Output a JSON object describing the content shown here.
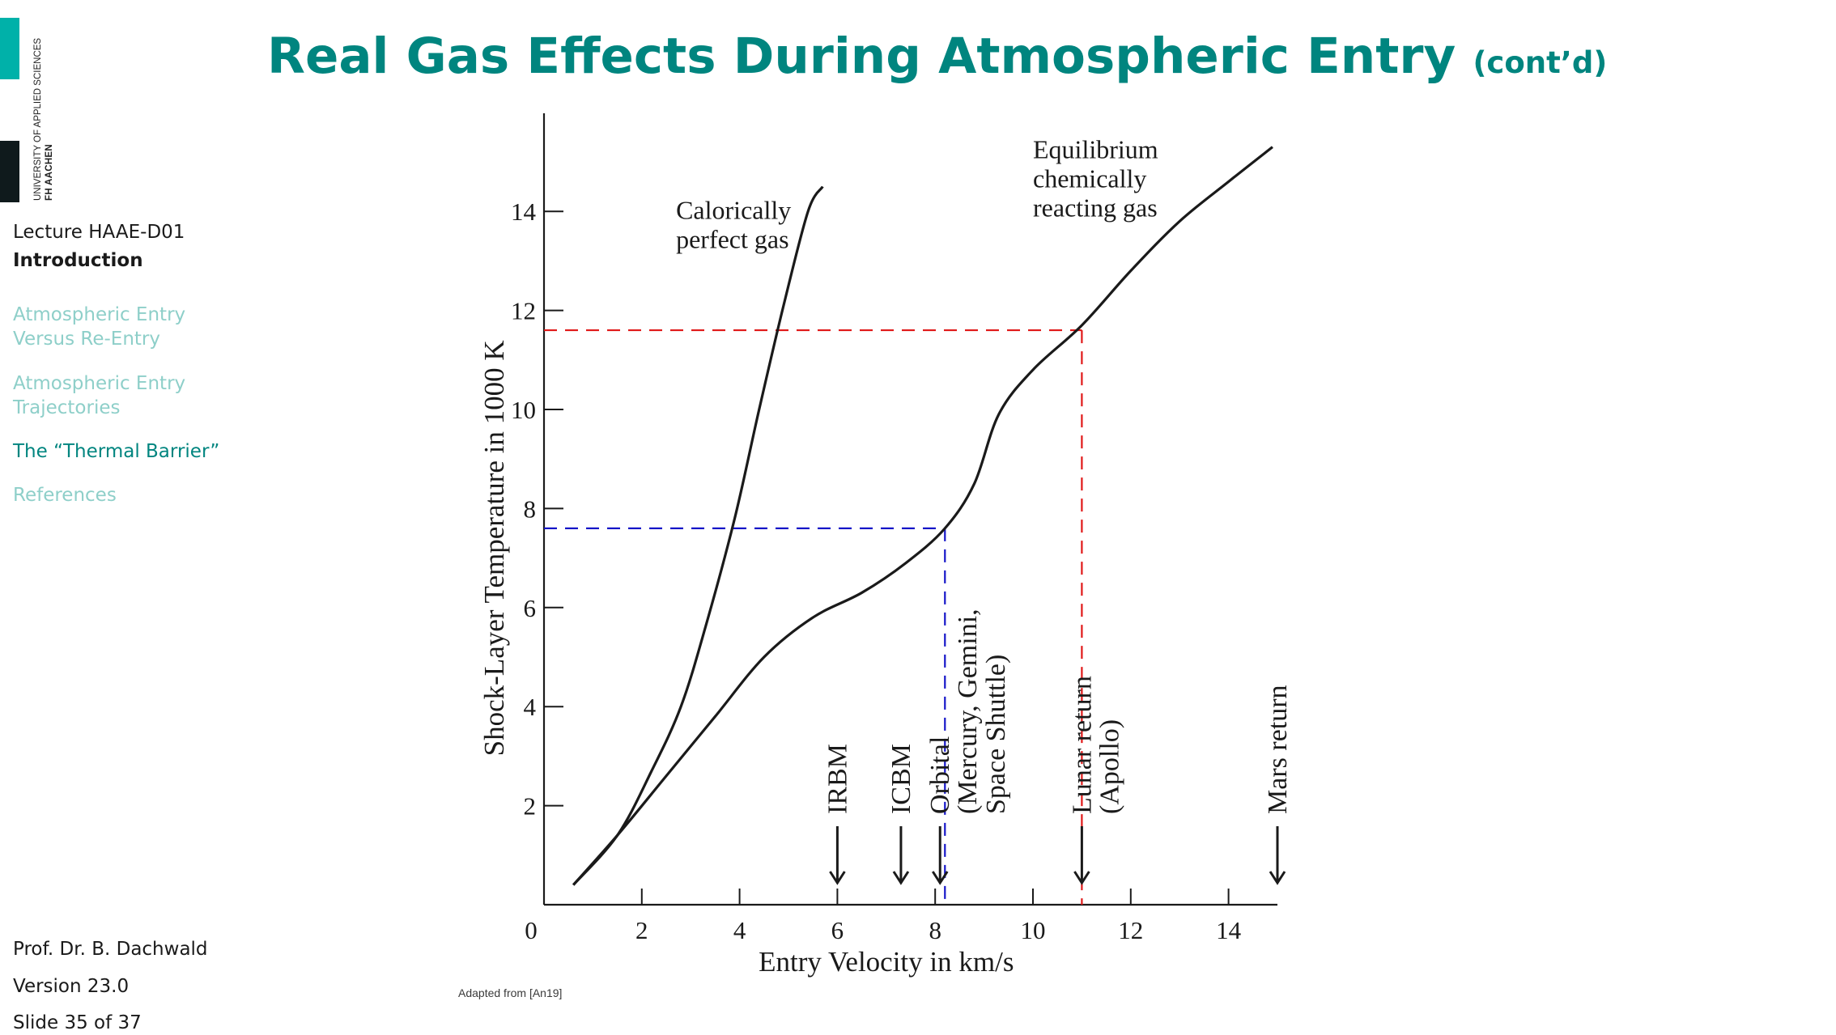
{
  "logo": {
    "name": "FH AACHEN",
    "subtitle": "UNIVERSITY OF APPLIED SCIENCES"
  },
  "sidebar": {
    "lecture": "Lecture HAAE-D01",
    "section": "Introduction",
    "nav": [
      {
        "label": "Atmospheric Entry Versus Re-Entry",
        "active": false
      },
      {
        "label": "Atmospheric Entry Trajectories",
        "active": false
      },
      {
        "label": "The “Thermal Barrier”",
        "active": true
      },
      {
        "label": "References",
        "active": false
      }
    ],
    "author": "Prof. Dr. B. Dachwald",
    "version": "Version 23.0",
    "slide": "Slide 35 of 37"
  },
  "title": {
    "main": "Real Gas Effects During Atmospheric Entry",
    "suffix": "(cont’d)"
  },
  "caption": "Adapted from [An19]",
  "colors": {
    "accent": "#00857f",
    "nav_inactive": "#8ecfc9",
    "logo_teal": "#00b1a9",
    "guide_blue": "#1515c8",
    "guide_red": "#e01818"
  },
  "chart_data": {
    "type": "line",
    "xlabel": "Entry Velocity in km/s",
    "ylabel": "Shock-Layer Temperature in 1000 K",
    "xlim": [
      0,
      15
    ],
    "ylim": [
      0,
      15.5
    ],
    "x_ticks": [
      0,
      2,
      4,
      6,
      8,
      10,
      12,
      14
    ],
    "y_ticks": [
      2,
      4,
      6,
      8,
      10,
      12,
      14
    ],
    "series": [
      {
        "name": "Calorically perfect gas",
        "points": [
          [
            0.6,
            0.4
          ],
          [
            1.5,
            1.4
          ],
          [
            2.2,
            2.7
          ],
          [
            2.8,
            4.0
          ],
          [
            3.3,
            5.6
          ],
          [
            3.9,
            7.8
          ],
          [
            4.4,
            10.0
          ],
          [
            4.9,
            12.1
          ],
          [
            5.4,
            14.0
          ],
          [
            5.7,
            14.5
          ]
        ]
      },
      {
        "name": "Equilibrium chemically reacting gas",
        "points": [
          [
            0.6,
            0.4
          ],
          [
            1.5,
            1.4
          ],
          [
            2.5,
            2.6
          ],
          [
            3.5,
            3.8
          ],
          [
            4.5,
            5.0
          ],
          [
            5.5,
            5.8
          ],
          [
            6.5,
            6.3
          ],
          [
            7.4,
            6.9
          ],
          [
            8.2,
            7.6
          ],
          [
            8.8,
            8.5
          ],
          [
            9.3,
            9.9
          ],
          [
            10.0,
            10.8
          ],
          [
            11.0,
            11.7
          ],
          [
            12.0,
            12.8
          ],
          [
            13.0,
            13.8
          ],
          [
            14.0,
            14.6
          ],
          [
            14.9,
            15.3
          ]
        ]
      }
    ],
    "markers": [
      {
        "label": "IRBM",
        "x": 6.0
      },
      {
        "label": "ICBM",
        "x": 7.3
      },
      {
        "label": "Orbital",
        "sublabel": "(Mercury, Gemini, Space Shuttle)",
        "x": 8.1
      },
      {
        "label": "Lunar return",
        "sublabel": "(Apollo)",
        "x": 11.0
      },
      {
        "label": "Mars return",
        "x": 15.0
      }
    ],
    "guides": [
      {
        "color": "blue",
        "x": 8.2,
        "y": 7.6
      },
      {
        "color": "red",
        "x": 11.0,
        "y": 11.6
      }
    ]
  }
}
